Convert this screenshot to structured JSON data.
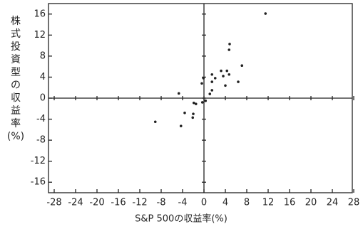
{
  "chart_data": {
    "type": "scatter",
    "y_label_lines": [
      "株",
      "式",
      "投",
      "資",
      "型",
      "の",
      "収",
      "益",
      "率",
      "(%)"
    ],
    "x_label": "S&P 500の収益率(%)",
    "color": "#222222",
    "x": [
      11.5,
      4.8,
      4.7,
      7.1,
      3.2,
      4.3,
      4.7,
      3.6,
      2.1,
      1.5,
      -0.1,
      -0.4,
      1.5,
      6.4,
      4.0,
      1.5,
      1.1,
      0.3,
      -0.3,
      -4.7,
      -1.9,
      -1.5,
      -3.6,
      -2.0,
      -2.1,
      -4.3,
      -9.1
    ],
    "values": [
      16.1,
      10.3,
      9.2,
      6.2,
      5.2,
      5.2,
      4.5,
      4.2,
      3.8,
      4.5,
      3.8,
      2.8,
      3.1,
      3.1,
      2.4,
      1.5,
      0.8,
      -0.5,
      -0.8,
      0.9,
      -0.9,
      -1.1,
      -2.8,
      -3.0,
      -3.7,
      -5.3,
      -4.5
    ],
    "xlim": [
      -28,
      28
    ],
    "ylim": [
      -18,
      18
    ],
    "xticks": [
      -28,
      -24,
      -20,
      -16,
      -12,
      -8,
      -4,
      0,
      4,
      8,
      12,
      16,
      20,
      24,
      28
    ],
    "yticks": [
      -16,
      -12,
      -8,
      -4,
      0,
      4,
      8,
      12,
      16
    ]
  }
}
